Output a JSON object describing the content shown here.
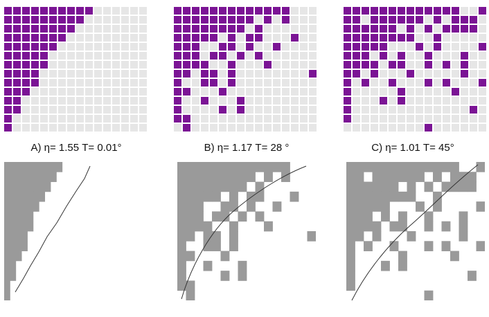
{
  "colors": {
    "filled": "#7B1495",
    "empty": "#E6E6E6",
    "mono_filled": "#9A9A9A",
    "curve": "#333333",
    "background": "#FFFFFF"
  },
  "panels": [
    {
      "id": "A",
      "caption": "A) η= 1.55 T= 0.01°",
      "grid": [
        "1111111111000000",
        "1111111110000000",
        "1111111100000000",
        "1111111000000000",
        "1111110000000000",
        "1111100000000000",
        "1111100000000000",
        "1111000000000000",
        "1111000000000000",
        "1110000000000000",
        "1100000000000000",
        "1100000000000000",
        "1000000000000000",
        "1000000000000000"
      ]
    },
    {
      "id": "B",
      "caption": "B) η= 1.17 T= 28 °",
      "grid": [
        "1111111111111000",
        "1111111110101000",
        "1111111101000000",
        "1111101011000100",
        "1110011010010000",
        "1110110101000000",
        "1111001000100000",
        "1101101000000001",
        "1001101000000000",
        "1100010000000000",
        "1001000100000000",
        "1000010100000000",
        "1100000000000000",
        "0100000000000000"
      ]
    },
    {
      "id": "C",
      "caption": "C) η= 1.01 T= 45°",
      "grid": [
        "1111111111111001",
        "1101111110101110",
        "1111110101011110",
        "1111111100100000",
        "1111100010100001",
        "1110101001000100",
        "1111011001010100",
        "1101000100000100",
        "1010010001010001",
        "1000001000001000",
        "1000101000000000",
        "1000000000000010",
        "1000000000000000",
        "0000000001000000"
      ]
    }
  ]
}
